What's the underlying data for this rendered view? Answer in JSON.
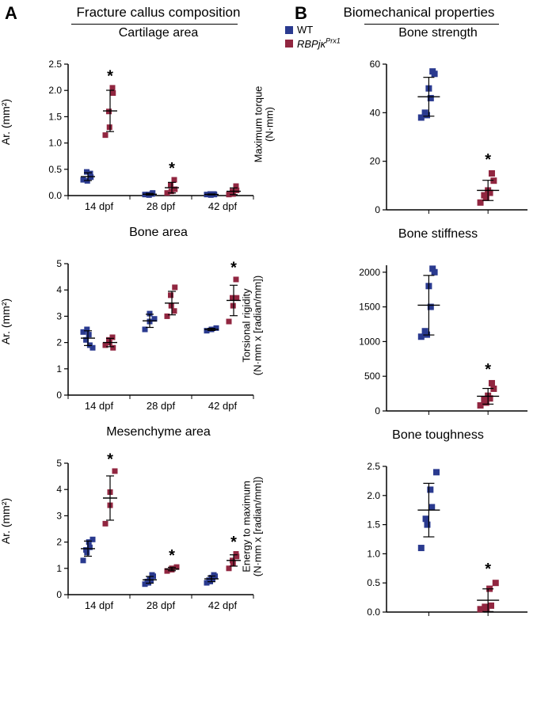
{
  "colors": {
    "wt": "#2a3a8f",
    "ko": "#912640",
    "axis": "#000000",
    "bg": "#ffffff"
  },
  "legend": {
    "wt": "WT",
    "ko_html": "RBPjκ<sup>Prx1</sup>"
  },
  "panelA": {
    "letter": "A",
    "section": "Fracture callus composition",
    "xcats": [
      "14 dpf",
      "28 dpf",
      "42 dpf"
    ],
    "charts": [
      {
        "title": "Cartilage area",
        "ylabel": "Ar. (mm²)",
        "ymin": 0,
        "ymax": 2.5,
        "ystep": 0.5,
        "ydec": 1,
        "groups": [
          {
            "wt": [
              0.3,
              0.28,
              0.45,
              0.35,
              0.42
            ],
            "ko": [
              1.15,
              1.3,
              1.6,
              1.95,
              2.05
            ],
            "sig": true
          },
          {
            "wt": [
              0.02,
              0.01,
              0.02,
              0.05,
              0.03
            ],
            "ko": [
              0.05,
              0.08,
              0.2,
              0.12,
              0.3
            ],
            "sig": true
          },
          {
            "wt": [
              0.02,
              0.01,
              0.03,
              0.02,
              0.03
            ],
            "ko": [
              0.02,
              0.03,
              0.08,
              0.1,
              0.18
            ],
            "sig": false
          }
        ]
      },
      {
        "title": "Bone area",
        "ylabel": "Ar. (mm²)",
        "ymin": 0,
        "ymax": 5,
        "ystep": 1,
        "ydec": 0,
        "groups": [
          {
            "wt": [
              2.4,
              2.5,
              2.1,
              1.9,
              2.3,
              1.8
            ],
            "ko": [
              1.9,
              2.0,
              2.1,
              1.8,
              2.2
            ],
            "sig": false
          },
          {
            "wt": [
              2.5,
              2.8,
              3.1,
              2.9
            ],
            "ko": [
              3.0,
              3.4,
              3.8,
              4.1,
              3.2
            ],
            "sig": false
          },
          {
            "wt": [
              2.45,
              2.5,
              2.5,
              2.55
            ],
            "ko": [
              2.8,
              3.4,
              3.7,
              3.7,
              4.4
            ],
            "sig": true
          }
        ]
      },
      {
        "title": "Mesenchyme area",
        "ylabel": "Ar. (mm²)",
        "ymin": 0,
        "ymax": 5,
        "ystep": 1,
        "ydec": 0,
        "groups": [
          {
            "wt": [
              1.3,
              1.6,
              1.7,
              1.8,
              2.0,
              2.1
            ],
            "ko": [
              2.7,
              3.4,
              3.9,
              4.7
            ],
            "sig": true
          },
          {
            "wt": [
              0.4,
              0.45,
              0.5,
              0.55,
              0.6,
              0.7,
              0.75
            ],
            "ko": [
              0.9,
              0.95,
              1.0,
              1.05
            ],
            "sig": true
          },
          {
            "wt": [
              0.45,
              0.5,
              0.55,
              0.6,
              0.65,
              0.7,
              0.75
            ],
            "ko": [
              1.0,
              1.2,
              1.3,
              1.45,
              1.55
            ],
            "sig": true
          }
        ]
      }
    ]
  },
  "panelB": {
    "letter": "B",
    "section": "Biomechanical properties",
    "charts": [
      {
        "title": "Bone strength",
        "ylabel": "Maximum torque\n(N·mm)",
        "ymin": 0,
        "ymax": 60,
        "ystep": 20,
        "ydec": 0,
        "wt": [
          38,
          39,
          40,
          46,
          50,
          56,
          57
        ],
        "ko": [
          3,
          5,
          6,
          7,
          8,
          12,
          15
        ],
        "sig": true
      },
      {
        "title": "Bone stiffness",
        "ylabel": "Torsional rigidity\n(N·mm x [radian/mm])",
        "ymin": 0,
        "ymax": 2100,
        "ystep": 500,
        "ydec": 0,
        "ymax_tick": 2000,
        "wt": [
          1070,
          1100,
          1150,
          1500,
          1800,
          2000,
          2050
        ],
        "ko": [
          80,
          120,
          160,
          180,
          220,
          320,
          400
        ],
        "sig": true
      },
      {
        "title": "Bone toughness",
        "ylabel": "Energy to maximum\n(N·mm x [radian/mm])",
        "ymin": 0,
        "ymax": 2.5,
        "ystep": 0.5,
        "ydec": 1,
        "wt": [
          1.1,
          1.5,
          1.6,
          1.8,
          2.1,
          2.4
        ],
        "ko": [
          0.05,
          0.07,
          0.09,
          0.11,
          0.4,
          0.5
        ],
        "sig": true
      }
    ]
  }
}
